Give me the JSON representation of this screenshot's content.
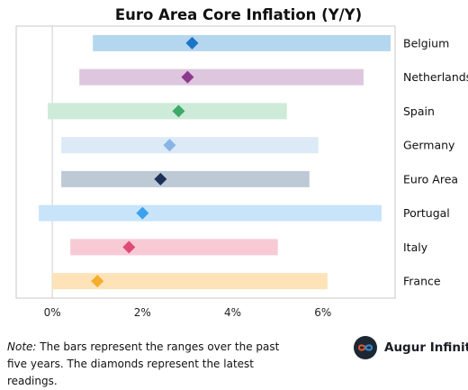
{
  "chart_data": {
    "type": "range-dot",
    "title": "Euro Area Core Inflation (Y/Y)",
    "xlim": [
      -0.8,
      7.6
    ],
    "x_ticks": [
      0,
      2,
      4,
      6
    ],
    "x_tick_labels": [
      "0%",
      "2%",
      "4%",
      "6%"
    ],
    "grid": "vertical line at 0% only",
    "categories": [
      "Belgium",
      "Netherlands",
      "Spain",
      "Germany",
      "Euro Area",
      "Portugal",
      "Italy",
      "France"
    ],
    "ranges": [
      {
        "category": "Belgium",
        "min": 0.9,
        "max": 7.5,
        "latest": 3.1
      },
      {
        "category": "Netherlands",
        "min": 0.6,
        "max": 6.9,
        "latest": 3.0
      },
      {
        "category": "Spain",
        "min": -0.1,
        "max": 5.2,
        "latest": 2.8
      },
      {
        "category": "Germany",
        "min": 0.2,
        "max": 5.9,
        "latest": 2.6
      },
      {
        "category": "Euro Area",
        "min": 0.2,
        "max": 5.7,
        "latest": 2.4
      },
      {
        "category": "Portugal",
        "min": -0.3,
        "max": 7.3,
        "latest": 2.0
      },
      {
        "category": "Italy",
        "min": 0.4,
        "max": 5.0,
        "latest": 1.7
      },
      {
        "category": "France",
        "min": 0.0,
        "max": 6.1,
        "latest": 1.0
      }
    ],
    "colors": [
      {
        "bar": "#b5d6ef",
        "dot": "#1a74c8"
      },
      {
        "bar": "#dec6de",
        "dot": "#8c3a8c"
      },
      {
        "bar": "#cdebd8",
        "dot": "#3fa96a"
      },
      {
        "bar": "#dce9f6",
        "dot": "#86b5e6"
      },
      {
        "bar": "#bdc9d5",
        "dot": "#1d3158"
      },
      {
        "bar": "#c8e4fb",
        "dot": "#3aa1ee"
      },
      {
        "bar": "#f7cad6",
        "dot": "#e04a78"
      },
      {
        "bar": "#fde3b7",
        "dot": "#f7ad2c"
      }
    ]
  },
  "note": {
    "prefix": "Note:",
    "text": " The bars represent the ranges over the past five years. The diamonds represent the latest readings."
  },
  "brand": {
    "name": "Augur Infinity",
    "icon": "infinity-icon"
  }
}
